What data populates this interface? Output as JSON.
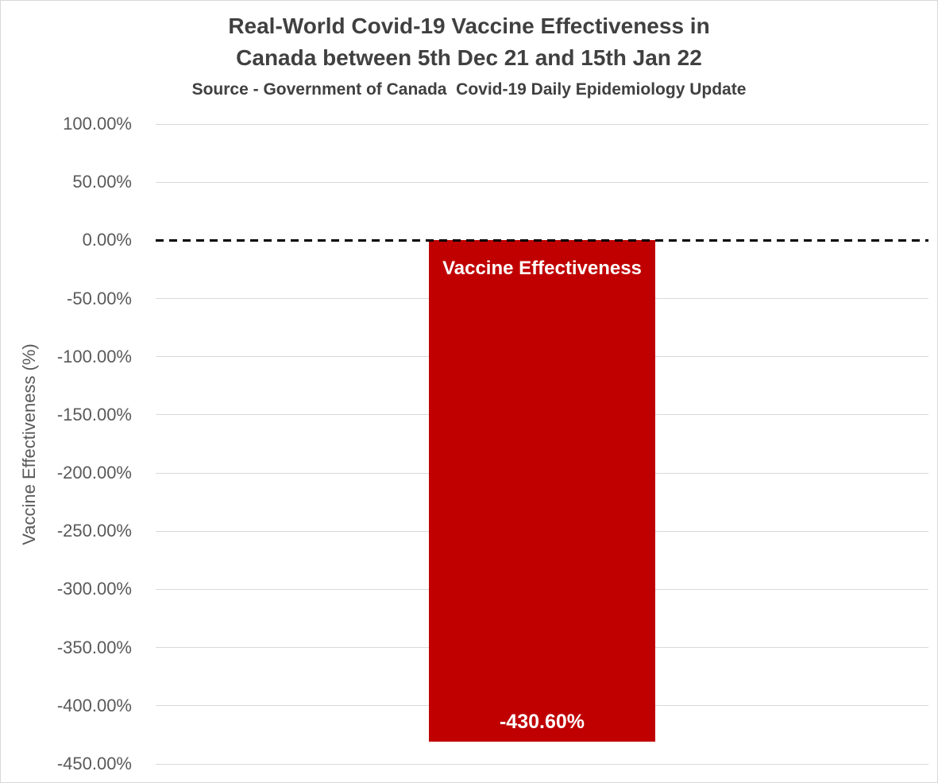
{
  "chart_data": {
    "type": "bar",
    "title": "Real-World Covid-19 Vaccine Effectiveness in Canada between 5th Dec 21 and 15th Jan 22",
    "title_lines": [
      "Real-World Covid-19 Vaccine Effectiveness in",
      "Canada between 5th Dec 21 and 15th Jan 22"
    ],
    "subtitle": "Source - Government of Canada  Covid-19 Daily Epidemiology Update",
    "categories": [
      "Vaccine Effectiveness"
    ],
    "values": [
      -430.6
    ],
    "value_labels": [
      "-430.60%"
    ],
    "xlabel": "",
    "ylabel": "Vaccine Effectiveness (%)",
    "ylim": [
      -450,
      100
    ],
    "ytick_step": 50,
    "yticks": [
      {
        "value": 100,
        "label": "100.00%"
      },
      {
        "value": 50,
        "label": "50.00%"
      },
      {
        "value": 0,
        "label": "0.00%"
      },
      {
        "value": -50,
        "label": "-50.00%"
      },
      {
        "value": -100,
        "label": "-100.00%"
      },
      {
        "value": -150,
        "label": "-150.00%"
      },
      {
        "value": -200,
        "label": "-200.00%"
      },
      {
        "value": -250,
        "label": "-250.00%"
      },
      {
        "value": -300,
        "label": "-300.00%"
      },
      {
        "value": -350,
        "label": "-350.00%"
      },
      {
        "value": -400,
        "label": "-400.00%"
      },
      {
        "value": -450,
        "label": "-450.00%"
      }
    ],
    "grid": true,
    "legend_position": "none",
    "zero_line_style": "dashed",
    "colors": {
      "bar": "#C00000",
      "gridline": "#D9D9D9",
      "zero_line": "#000000",
      "title_text": "#404040",
      "tick_text": "#595959",
      "bar_label_text": "#FFFFFF",
      "background": "#FFFFFF",
      "border": "#D9D9D9"
    }
  }
}
